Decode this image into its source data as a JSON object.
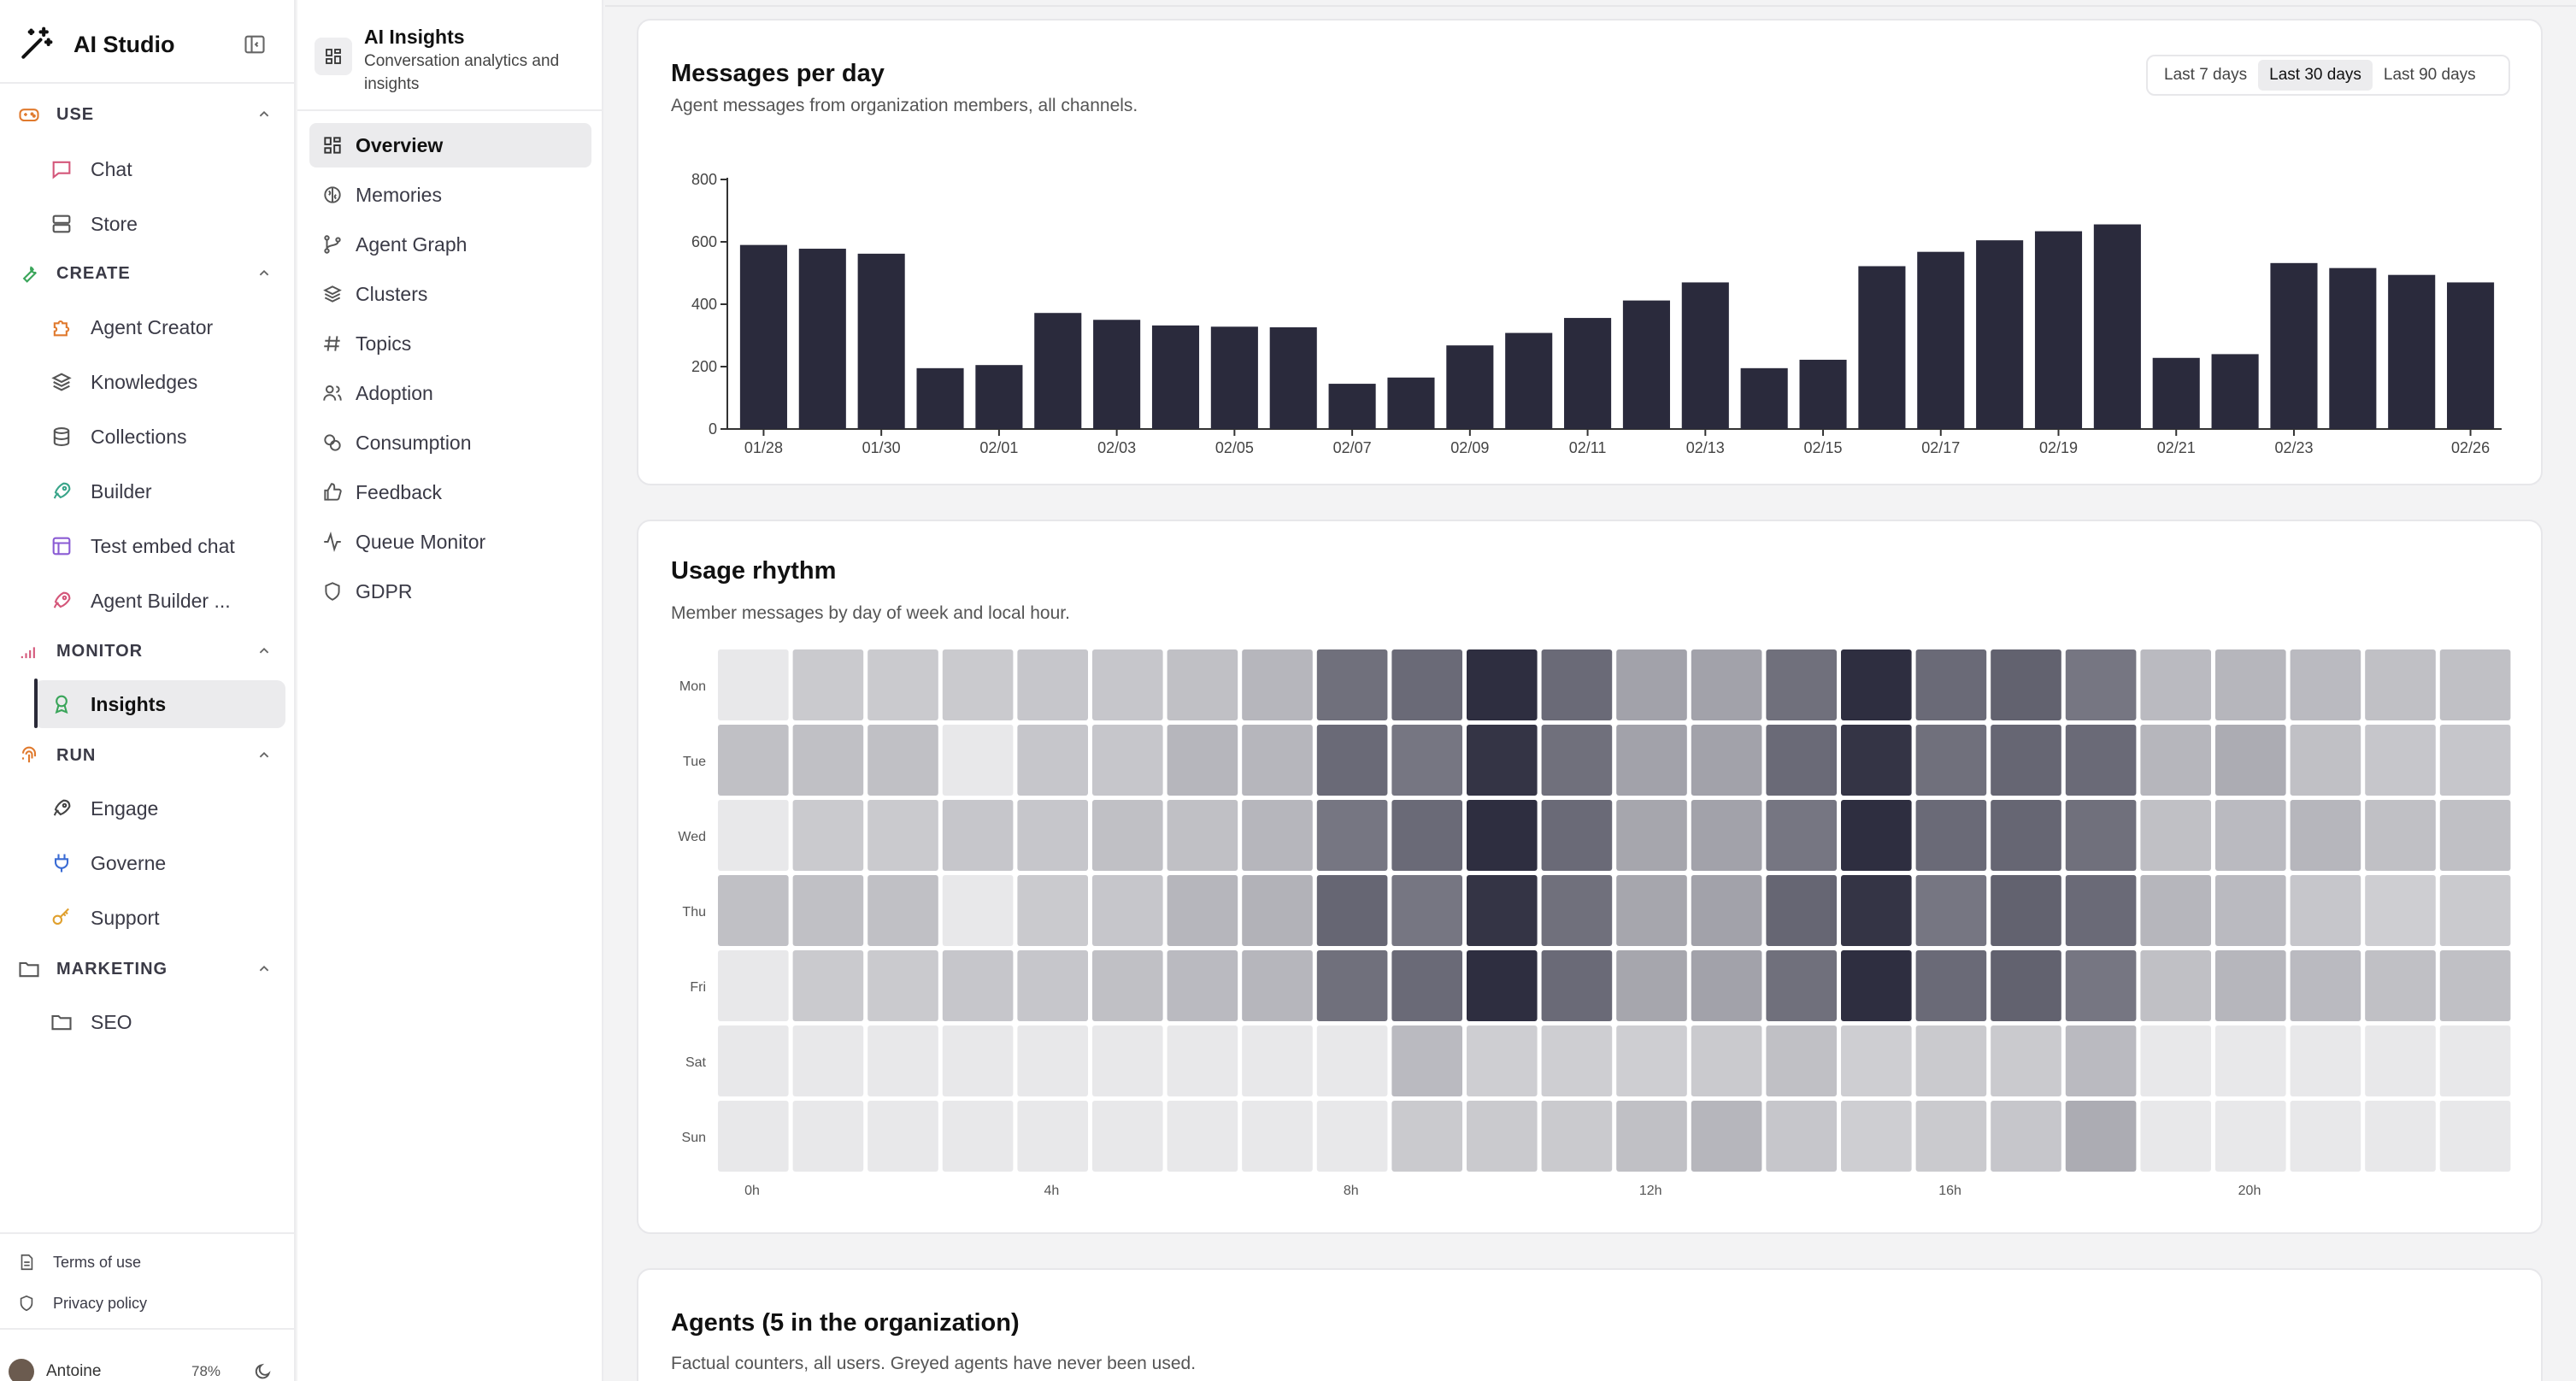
{
  "app": {
    "title": "AI Studio"
  },
  "sidebar": {
    "sections": [
      {
        "label": "USE",
        "icon": "gamepad-icon"
      },
      {
        "label": "CREATE",
        "icon": "wrench-icon"
      },
      {
        "label": "MONITOR",
        "icon": "signal-bars-icon"
      },
      {
        "label": "RUN",
        "icon": "fingerprint-icon"
      },
      {
        "label": "MARKETING",
        "icon": "folder-icon"
      }
    ],
    "items": {
      "chat": "Chat",
      "store": "Store",
      "agent_creator": "Agent Creator",
      "knowledges": "Knowledges",
      "collections": "Collections",
      "builder": "Builder",
      "test_embed_chat": "Test embed chat",
      "agent_builder": "Agent Builder ...",
      "insights": "Insights",
      "engage": "Engage",
      "governe": "Governe",
      "support": "Support",
      "seo": "SEO"
    },
    "footer": {
      "terms": "Terms of use",
      "privacy": "Privacy policy"
    },
    "user": {
      "name": "Antoine",
      "usage": "78%"
    },
    "colors": {
      "create": "#3aa55a",
      "monitor": "#d4577a",
      "run": "#e07a2e",
      "accent_dark": "#2a2a3c"
    }
  },
  "panel": {
    "title": "AI Insights",
    "subtitle": "Conversation analytics and insights",
    "items": [
      "Overview",
      "Memories",
      "Agent Graph",
      "Clusters",
      "Topics",
      "Adoption",
      "Consumption",
      "Feedback",
      "Queue Monitor",
      "GDPR"
    ],
    "active": "Overview"
  },
  "messages_card": {
    "title": "Messages per day",
    "subtitle": "Agent messages from organization members, all channels.",
    "ranges": [
      "Last 7 days",
      "Last 30 days",
      "Last 90 days"
    ],
    "active_range": "Last 30 days"
  },
  "rhythm_card": {
    "title": "Usage rhythm",
    "subtitle": "Member messages by day of week and local hour."
  },
  "agents_card": {
    "title": "Agents (5 in the organization)",
    "subtitle": "Factual counters, all users. Greyed agents have never been used."
  },
  "chart_data": [
    {
      "type": "bar",
      "categories": [
        "01/28",
        "01/29",
        "01/30",
        "01/31",
        "02/01",
        "02/02",
        "02/03",
        "02/04",
        "02/05",
        "02/06",
        "02/07",
        "02/08",
        "02/09",
        "02/10",
        "02/11",
        "02/12",
        "02/13",
        "02/14",
        "02/15",
        "02/16",
        "02/17",
        "02/18",
        "02/19",
        "02/20",
        "02/21",
        "02/22",
        "02/23",
        "02/24",
        "02/25",
        "02/26"
      ],
      "tick_labels": [
        "01/28",
        "",
        "01/30",
        "",
        "02/01",
        "",
        "02/03",
        "",
        "02/05",
        "",
        "02/07",
        "",
        "02/09",
        "",
        "02/11",
        "",
        "02/13",
        "",
        "02/15",
        "",
        "02/17",
        "",
        "02/19",
        "",
        "02/21",
        "",
        "02/23",
        "",
        "",
        "02/26"
      ],
      "values": [
        590,
        578,
        562,
        195,
        205,
        372,
        350,
        332,
        328,
        326,
        145,
        165,
        268,
        308,
        356,
        412,
        470,
        195,
        222,
        522,
        568,
        605,
        634,
        656,
        228,
        240,
        532,
        516,
        494,
        470
      ],
      "yticks": [
        0,
        200,
        400,
        600,
        800
      ],
      "ylim": [
        0,
        800
      ],
      "color": "#2a2a3c"
    },
    {
      "type": "heatmap",
      "rows": [
        "Mon",
        "Tue",
        "Wed",
        "Thu",
        "Fri",
        "Sat",
        "Sun"
      ],
      "x_tick_labels": {
        "0": "0h",
        "4": "4h",
        "8": "8h",
        "12": "12h",
        "16": "16h",
        "20": "20h"
      },
      "columns": 24,
      "values": [
        [
          0.05,
          0.2,
          0.2,
          0.2,
          0.22,
          0.22,
          0.25,
          0.3,
          0.65,
          0.68,
          0.98,
          0.68,
          0.4,
          0.4,
          0.65,
          0.98,
          0.68,
          0.72,
          0.62,
          0.28,
          0.3,
          0.28,
          0.25,
          0.25
        ],
        [
          0.25,
          0.25,
          0.25,
          0.05,
          0.22,
          0.22,
          0.3,
          0.3,
          0.68,
          0.62,
          0.95,
          0.65,
          0.4,
          0.4,
          0.68,
          0.95,
          0.65,
          0.7,
          0.68,
          0.3,
          0.35,
          0.25,
          0.22,
          0.22
        ],
        [
          0.05,
          0.2,
          0.2,
          0.22,
          0.22,
          0.25,
          0.25,
          0.3,
          0.62,
          0.68,
          0.98,
          0.68,
          0.38,
          0.4,
          0.62,
          0.98,
          0.68,
          0.7,
          0.65,
          0.25,
          0.28,
          0.3,
          0.25,
          0.25
        ],
        [
          0.25,
          0.25,
          0.25,
          0.05,
          0.2,
          0.22,
          0.3,
          0.32,
          0.7,
          0.62,
          0.95,
          0.65,
          0.38,
          0.4,
          0.7,
          0.95,
          0.62,
          0.72,
          0.68,
          0.3,
          0.28,
          0.22,
          0.18,
          0.2
        ],
        [
          0.05,
          0.2,
          0.2,
          0.22,
          0.22,
          0.25,
          0.28,
          0.3,
          0.65,
          0.68,
          0.98,
          0.68,
          0.38,
          0.4,
          0.65,
          0.98,
          0.68,
          0.72,
          0.62,
          0.25,
          0.3,
          0.28,
          0.25,
          0.25
        ],
        [
          0.05,
          0.05,
          0.05,
          0.05,
          0.05,
          0.05,
          0.05,
          0.05,
          0.05,
          0.28,
          0.18,
          0.18,
          0.18,
          0.2,
          0.25,
          0.18,
          0.2,
          0.2,
          0.28,
          0.05,
          0.05,
          0.05,
          0.05,
          0.05
        ],
        [
          0.05,
          0.05,
          0.05,
          0.05,
          0.05,
          0.05,
          0.05,
          0.05,
          0.05,
          0.2,
          0.2,
          0.2,
          0.25,
          0.3,
          0.22,
          0.18,
          0.2,
          0.22,
          0.35,
          0.05,
          0.05,
          0.05,
          0.05,
          0.05
        ]
      ]
    }
  ]
}
